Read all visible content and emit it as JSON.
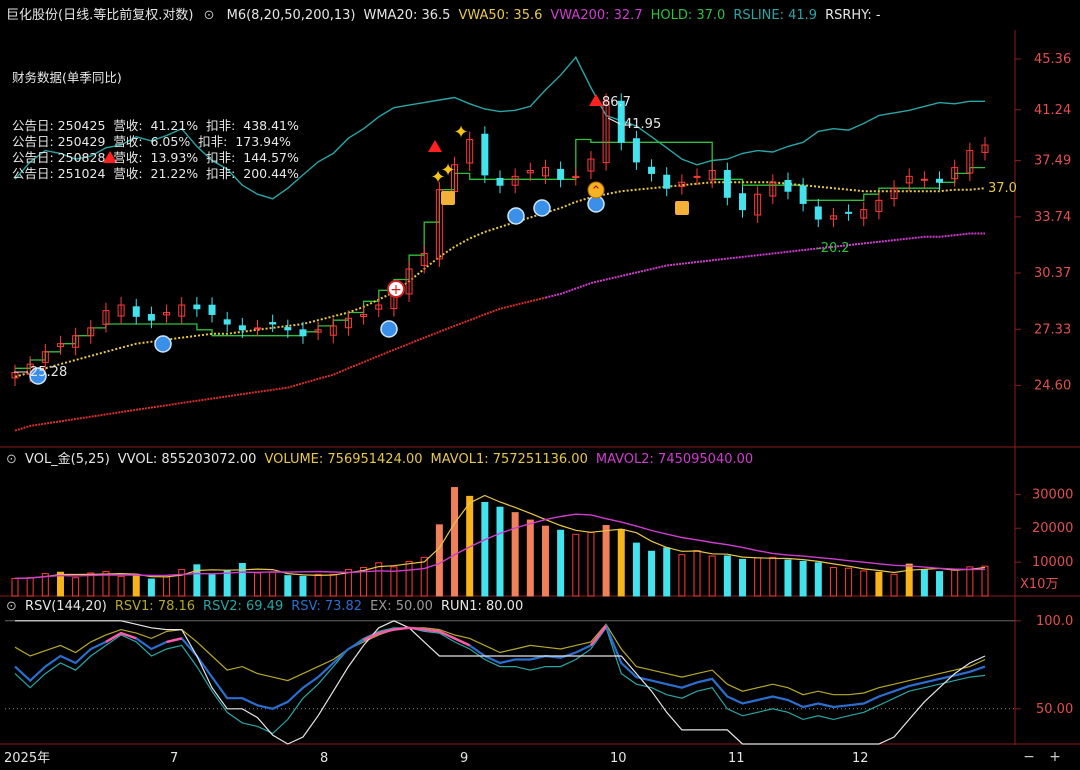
{
  "main_header": {
    "title": "巨化股份(日线.等比前复权.对数)",
    "items": [
      {
        "label": "M6(8,20,50,200,13)",
        "color": "#e6e6e6"
      },
      {
        "label": "WMA20: 36.5",
        "color": "#e6e6e6"
      },
      {
        "label": "VWA50: 35.6",
        "color": "#e8c84a"
      },
      {
        "label": "VWA200: 32.7",
        "color": "#d03cd0"
      },
      {
        "label": "HOLD: 37.0",
        "color": "#2fc13c"
      },
      {
        "label": "RSLINE: 41.9",
        "color": "#2aa5a5"
      },
      {
        "label": "RSRHY: -",
        "color": "#e6e6e6"
      }
    ]
  },
  "financials": {
    "title": "财务数据(单季同比)",
    "rows": [
      {
        "date": "公告日: 250425",
        "rev": "营收:  41.21%",
        "net": "扣非:  438.41%"
      },
      {
        "date": "公告日: 250429",
        "rev": "营收:  6.05%",
        "net": "扣非:  173.94%"
      },
      {
        "date": "公告日: 250828",
        "rev": "营收:  13.93%",
        "net": "扣非:  144.57%"
      },
      {
        "date": "公告日: 251024",
        "rev": "营收:  21.22%",
        "net": "扣非:  200.44%"
      }
    ]
  },
  "vol_header": {
    "items": [
      {
        "label": "VOL_金(5,25)",
        "color": "#e6e6e6"
      },
      {
        "label": "VVOL: 855203072.00",
        "color": "#e6e6e6"
      },
      {
        "label": "VOLUME: 756951424.00",
        "color": "#e8c84a"
      },
      {
        "label": "MAVOL1: 757251136.00",
        "color": "#e8c84a"
      },
      {
        "label": "MAVOL2: 745095040.00",
        "color": "#d03cd0"
      }
    ]
  },
  "rsv_header": {
    "items": [
      {
        "label": "RSV(144,20)",
        "color": "#e6e6e6"
      },
      {
        "label": "RSV1: 78.16",
        "color": "#b6a82a"
      },
      {
        "label": "RSV2: 69.49",
        "color": "#2aa5a5"
      },
      {
        "label": "RSV: 73.82",
        "color": "#2a6fd0"
      },
      {
        "label": "EX: 50.00",
        "color": "#9a9a9a"
      },
      {
        "label": "RUN1: 80.00",
        "color": "#e6e6e6"
      }
    ]
  },
  "controls": {
    "minus": "−",
    "plus": "+"
  },
  "chart_data": [
    {
      "type": "candlestick",
      "title": "巨化股份(日线.等比前复权.对数)",
      "log_scale": true,
      "ylim": [
        22.0,
        47.0
      ],
      "y_ticks": [
        "45.36",
        "41.24",
        "37.49",
        "33.74",
        "30.37",
        "27.33",
        "24.60"
      ],
      "x_ticks": [
        "2025年",
        "7",
        "8",
        "9",
        "10",
        "11",
        "12"
      ],
      "annotations": [
        "25.28",
        "86.7",
        "41.95",
        "-20.2",
        "37.0"
      ],
      "close_approx": [
        25.2,
        25.6,
        26.2,
        26.6,
        27.0,
        27.4,
        28.3,
        28.6,
        28.0,
        27.8,
        28.2,
        28.6,
        28.4,
        28.1,
        27.6,
        27.3,
        27.4,
        27.6,
        27.3,
        27.0,
        27.3,
        27.5,
        27.9,
        28.1,
        28.6,
        29.2,
        30.6,
        31.5,
        35.5,
        37.2,
        39.0,
        36.5,
        35.8,
        36.4,
        36.8,
        37.0,
        36.2,
        36.4,
        37.6,
        41.9,
        38.8,
        37.4,
        36.6,
        35.6,
        36.0,
        36.4,
        36.8,
        35.0,
        34.2,
        35.2,
        36.0,
        35.4,
        34.6,
        33.6,
        33.8,
        34.0,
        34.2,
        34.8,
        35.6,
        36.4,
        36.2,
        36.0,
        37.0,
        38.2,
        38.6
      ],
      "series_approx": [
        {
          "name": "RSLINE",
          "values": [
            36.2,
            37.4,
            38.2,
            38.0,
            37.6,
            37.8,
            38.4,
            38.6,
            39.2,
            38.9,
            39.3,
            39.8,
            38.5,
            37.5,
            36.9,
            35.8,
            35.2,
            34.9,
            35.6,
            36.5,
            37.4,
            38.0,
            39.1,
            39.8,
            40.7,
            41.4,
            41.6,
            41.8,
            42.0,
            42.2,
            41.7,
            41.3,
            41.1,
            41.2,
            41.5,
            42.8,
            44.0,
            45.5,
            43.0,
            40.8,
            40.4,
            40.0,
            39.2,
            38.4,
            37.6,
            37.2,
            37.5,
            37.6,
            38.0,
            38.2,
            38.1,
            38.5,
            38.8,
            39.6,
            39.8,
            39.7,
            40.2,
            40.8,
            41.0,
            41.2,
            41.5,
            41.8,
            41.7,
            41.9,
            41.9
          ]
        },
        {
          "name": "HOLD",
          "values": [
            25.4,
            25.8,
            26.2,
            26.6,
            27.0,
            27.4,
            27.6,
            27.6,
            27.6,
            27.6,
            27.6,
            27.6,
            27.3,
            27.0,
            27.0,
            27.0,
            27.0,
            27.0,
            27.0,
            27.2,
            27.5,
            27.8,
            28.2,
            28.8,
            29.4,
            30.0,
            31.4,
            33.4,
            35.5,
            36.6,
            36.2,
            36.2,
            36.2,
            36.2,
            36.2,
            36.2,
            36.2,
            39.0,
            38.8,
            38.8,
            38.8,
            38.8,
            38.8,
            38.8,
            38.8,
            38.8,
            36.2,
            36.2,
            35.8,
            35.8,
            35.8,
            35.8,
            34.8,
            34.8,
            34.8,
            34.8,
            35.2,
            35.6,
            35.6,
            35.6,
            35.6,
            36.0,
            36.6,
            37.0,
            37.0
          ]
        },
        {
          "name": "VWA50",
          "values": [
            25.0,
            25.2,
            25.4,
            25.6,
            25.8,
            26.0,
            26.2,
            26.4,
            26.6,
            26.7,
            26.8,
            26.9,
            27.0,
            27.1,
            27.1,
            27.2,
            27.3,
            27.4,
            27.5,
            27.6,
            27.8,
            28.0,
            28.2,
            28.5,
            28.9,
            29.3,
            29.9,
            30.6,
            31.3,
            31.9,
            32.4,
            32.8,
            33.1,
            33.4,
            33.7,
            34.0,
            34.3,
            34.7,
            35.0,
            35.2,
            35.4,
            35.5,
            35.6,
            35.7,
            35.8,
            35.9,
            36.0,
            36.0,
            36.0,
            36.0,
            36.0,
            35.9,
            35.8,
            35.7,
            35.6,
            35.5,
            35.4,
            35.4,
            35.4,
            35.4,
            35.4,
            35.4,
            35.5,
            35.5,
            35.6
          ]
        },
        {
          "name": "VWA200",
          "values": [
            22.6,
            22.8,
            22.9,
            23.0,
            23.1,
            23.2,
            23.3,
            23.4,
            23.5,
            23.6,
            23.7,
            23.8,
            23.9,
            24.0,
            24.1,
            24.2,
            24.3,
            24.4,
            24.5,
            24.7,
            24.9,
            25.1,
            25.4,
            25.7,
            26.0,
            26.3,
            26.6,
            26.9,
            27.2,
            27.5,
            27.8,
            28.1,
            28.4,
            28.6,
            28.8,
            29.0,
            29.2,
            29.5,
            29.8,
            30.0,
            30.2,
            30.4,
            30.6,
            30.8,
            30.9,
            31.0,
            31.1,
            31.2,
            31.3,
            31.4,
            31.5,
            31.6,
            31.7,
            31.8,
            31.9,
            32.0,
            32.1,
            32.2,
            32.3,
            32.4,
            32.5,
            32.5,
            32.6,
            32.7,
            32.7
          ]
        }
      ]
    },
    {
      "type": "bar",
      "title": "VOL_金(5,25)",
      "unit": "X10万",
      "ylim": [
        0,
        36000
      ],
      "y_ticks": [
        "30000",
        "20000",
        "10000"
      ],
      "values_approx": [
        5200,
        5400,
        6600,
        7000,
        5400,
        6800,
        7200,
        5800,
        6400,
        5000,
        5600,
        7800,
        9200,
        6200,
        7400,
        9600,
        6800,
        7000,
        6000,
        5800,
        6400,
        6400,
        7800,
        8400,
        9800,
        8600,
        10200,
        11400,
        21000,
        32000,
        29400,
        27600,
        26200,
        24600,
        22400,
        20600,
        19400,
        18200,
        18800,
        20800,
        19600,
        15600,
        13200,
        14200,
        12200,
        13400,
        11800,
        11800,
        10800,
        11200,
        11400,
        10600,
        10200,
        9800,
        8400,
        8200,
        7400,
        7000,
        6400,
        9400,
        7800,
        7200,
        7800,
        8600,
        8800
      ],
      "highlight_color": "#f7b31a",
      "series": [
        {
          "name": "MAVOL1",
          "color": "#e8c84a"
        },
        {
          "name": "MAVOL2",
          "color": "#d03cd0"
        }
      ]
    },
    {
      "type": "line",
      "title": "RSV(144,20)",
      "ylim": [
        30,
        105
      ],
      "y_ticks": [
        "100.0",
        "50.00"
      ],
      "series_approx": [
        {
          "name": "RSV1",
          "color": "#b6a82a",
          "values": [
            85,
            80,
            83,
            86,
            82,
            88,
            92,
            95,
            93,
            90,
            94,
            95,
            88,
            80,
            72,
            74,
            70,
            68,
            66,
            70,
            74,
            78,
            84,
            88,
            92,
            95,
            96,
            96,
            95,
            92,
            90,
            86,
            82,
            84,
            86,
            85,
            84,
            86,
            88,
            98,
            84,
            74,
            72,
            70,
            68,
            70,
            72,
            64,
            60,
            62,
            64,
            62,
            58,
            60,
            58,
            58,
            59,
            62,
            64,
            66,
            68,
            70,
            72,
            74,
            78
          ]
        },
        {
          "name": "RSV2",
          "color": "#2aa5a5",
          "values": [
            70,
            62,
            70,
            76,
            72,
            80,
            86,
            92,
            88,
            80,
            84,
            86,
            74,
            60,
            48,
            42,
            40,
            36,
            44,
            56,
            64,
            74,
            84,
            90,
            94,
            96,
            96,
            94,
            93,
            88,
            84,
            78,
            74,
            74,
            72,
            74,
            74,
            78,
            84,
            96,
            70,
            64,
            62,
            58,
            56,
            60,
            62,
            50,
            46,
            48,
            50,
            48,
            44,
            46,
            44,
            46,
            48,
            52,
            56,
            60,
            62,
            64,
            66,
            68,
            69
          ]
        },
        {
          "name": "RSV",
          "color": "#2a6fd0",
          "values": [
            74,
            66,
            74,
            80,
            76,
            84,
            88,
            93,
            90,
            84,
            88,
            90,
            80,
            68,
            56,
            56,
            52,
            50,
            54,
            62,
            68,
            76,
            84,
            89,
            93,
            95,
            96,
            95,
            94,
            90,
            86,
            80,
            76,
            78,
            78,
            80,
            79,
            82,
            86,
            97,
            76,
            68,
            66,
            64,
            62,
            65,
            67,
            57,
            53,
            55,
            57,
            55,
            51,
            53,
            51,
            52,
            53,
            57,
            60,
            63,
            65,
            67,
            69,
            71,
            74
          ]
        },
        {
          "name": "RUN1",
          "color": "#e6e6e6",
          "values": [
            100,
            100,
            100,
            100,
            100,
            100,
            100,
            100,
            98,
            96,
            95,
            95,
            80,
            62,
            50,
            50,
            45,
            35,
            30,
            34,
            46,
            60,
            74,
            86,
            96,
            100,
            96,
            88,
            80,
            80,
            80,
            80,
            80,
            80,
            80,
            80,
            80,
            80,
            80,
            80,
            80,
            70,
            60,
            48,
            38,
            38,
            38,
            38,
            30,
            30,
            30,
            30,
            30,
            30,
            30,
            30,
            30,
            30,
            34,
            44,
            54,
            62,
            70,
            76,
            80
          ]
        }
      ]
    }
  ]
}
